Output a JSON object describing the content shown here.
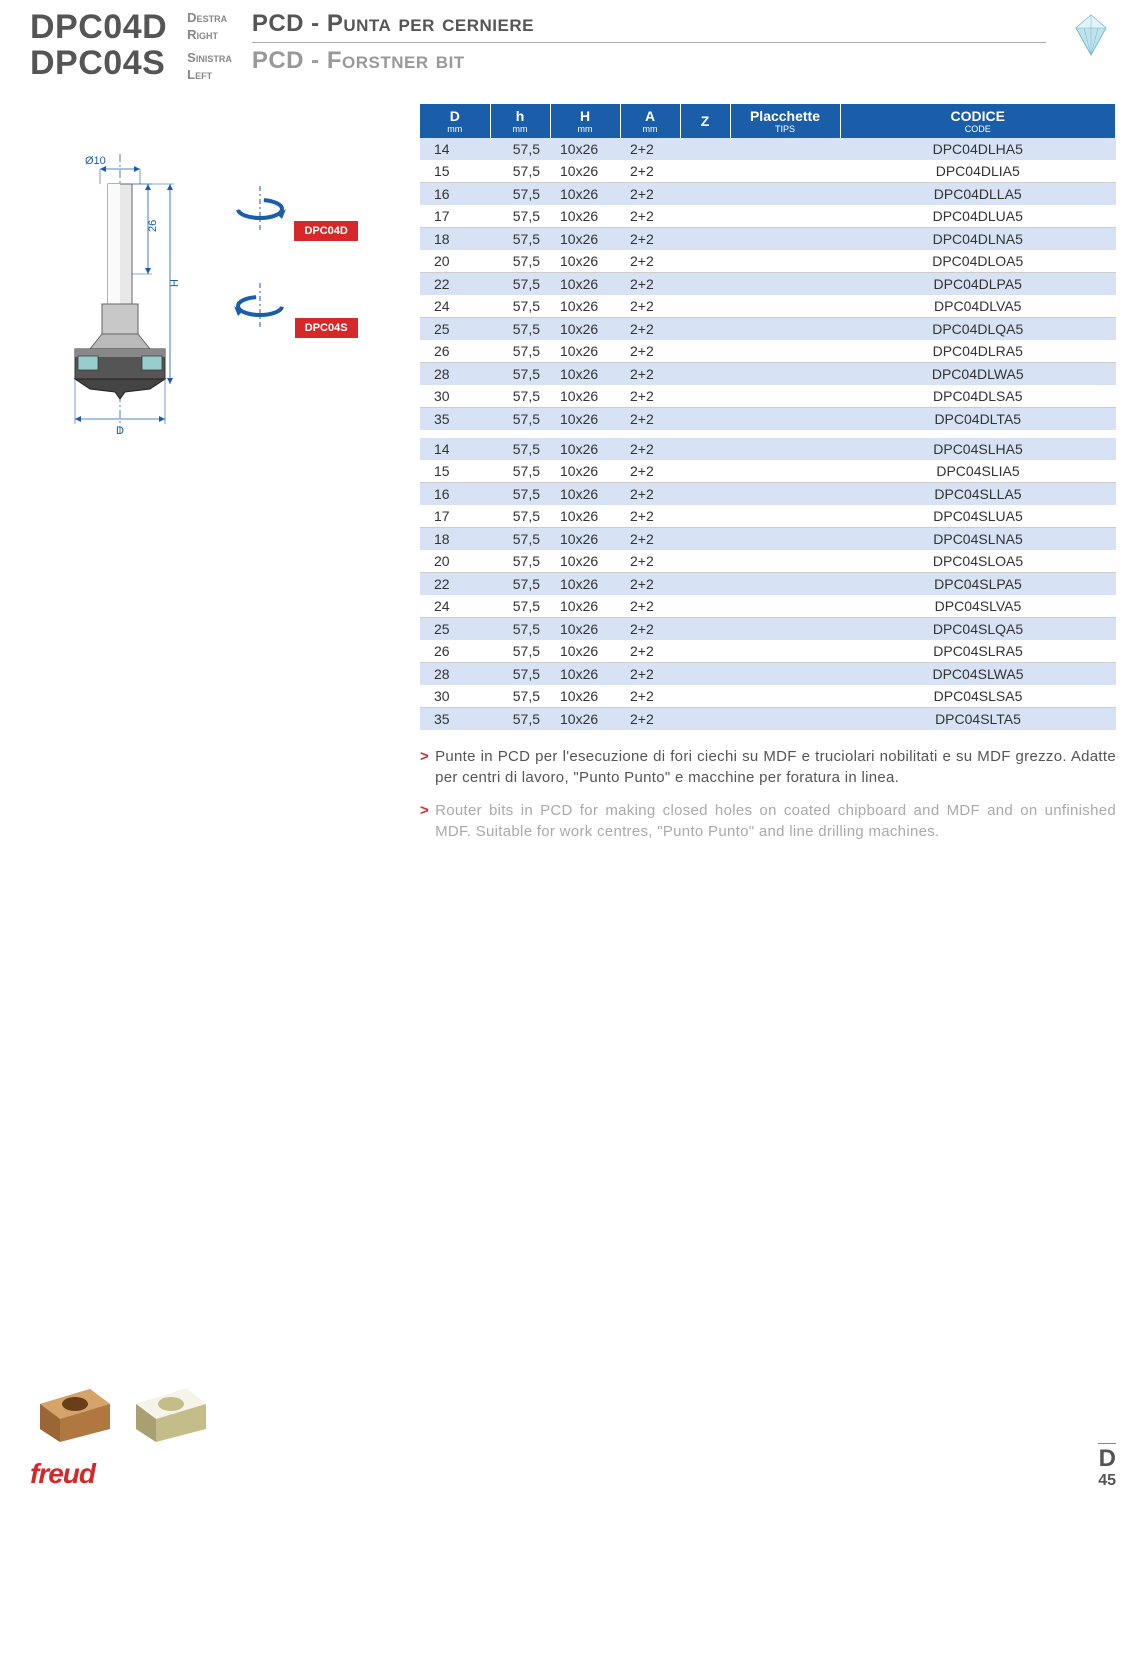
{
  "header": {
    "code1": "DPC04D",
    "code2": "DPC04S",
    "dir_it1": "Destra",
    "dir_en1": "Right",
    "dir_it2": "Sinistra",
    "dir_en2": "Left",
    "title_it": "PCD - Punta per cerniere",
    "title_en": "PCD - Forstner bit"
  },
  "diagram": {
    "shaft_dia": "Ø10",
    "shaft_len": "26",
    "height_lbl": "H",
    "dia_lbl": "D",
    "rot_label_d": "DPC04D",
    "rot_label_s": "DPC04S"
  },
  "table": {
    "headers": {
      "D": "D",
      "D_sub": "mm",
      "h": "h",
      "h_sub": "mm",
      "H": "H",
      "H_sub": "mm",
      "A": "A",
      "A_sub": "mm",
      "Z": "Z",
      "tips": "Placchette",
      "tips_sub": "TIPS",
      "code": "CODICE",
      "code_sub": "CODE"
    },
    "group1": [
      {
        "D": "14",
        "h": "57,5",
        "H": "10x26",
        "A": "2+2",
        "Z": "",
        "tips": "",
        "code": "DPC04DLHA5"
      },
      {
        "D": "15",
        "h": "57,5",
        "H": "10x26",
        "A": "2+2",
        "Z": "",
        "tips": "",
        "code": "DPC04DLIA5"
      },
      {
        "D": "16",
        "h": "57,5",
        "H": "10x26",
        "A": "2+2",
        "Z": "",
        "tips": "",
        "code": "DPC04DLLA5"
      },
      {
        "D": "17",
        "h": "57,5",
        "H": "10x26",
        "A": "2+2",
        "Z": "",
        "tips": "",
        "code": "DPC04DLUA5"
      },
      {
        "D": "18",
        "h": "57,5",
        "H": "10x26",
        "A": "2+2",
        "Z": "",
        "tips": "",
        "code": "DPC04DLNA5"
      },
      {
        "D": "20",
        "h": "57,5",
        "H": "10x26",
        "A": "2+2",
        "Z": "",
        "tips": "",
        "code": "DPC04DLOA5"
      },
      {
        "D": "22",
        "h": "57,5",
        "H": "10x26",
        "A": "2+2",
        "Z": "",
        "tips": "",
        "code": "DPC04DLPA5"
      },
      {
        "D": "24",
        "h": "57,5",
        "H": "10x26",
        "A": "2+2",
        "Z": "",
        "tips": "",
        "code": "DPC04DLVA5"
      },
      {
        "D": "25",
        "h": "57,5",
        "H": "10x26",
        "A": "2+2",
        "Z": "",
        "tips": "",
        "code": "DPC04DLQA5"
      },
      {
        "D": "26",
        "h": "57,5",
        "H": "10x26",
        "A": "2+2",
        "Z": "",
        "tips": "",
        "code": "DPC04DLRA5"
      },
      {
        "D": "28",
        "h": "57,5",
        "H": "10x26",
        "A": "2+2",
        "Z": "",
        "tips": "",
        "code": "DPC04DLWA5"
      },
      {
        "D": "30",
        "h": "57,5",
        "H": "10x26",
        "A": "2+2",
        "Z": "",
        "tips": "",
        "code": "DPC04DLSA5"
      },
      {
        "D": "35",
        "h": "57,5",
        "H": "10x26",
        "A": "2+2",
        "Z": "",
        "tips": "",
        "code": "DPC04DLTA5"
      }
    ],
    "group2": [
      {
        "D": "14",
        "h": "57,5",
        "H": "10x26",
        "A": "2+2",
        "Z": "",
        "tips": "",
        "code": "DPC04SLHA5"
      },
      {
        "D": "15",
        "h": "57,5",
        "H": "10x26",
        "A": "2+2",
        "Z": "",
        "tips": "",
        "code": "DPC04SLIA5"
      },
      {
        "D": "16",
        "h": "57,5",
        "H": "10x26",
        "A": "2+2",
        "Z": "",
        "tips": "",
        "code": "DPC04SLLA5"
      },
      {
        "D": "17",
        "h": "57,5",
        "H": "10x26",
        "A": "2+2",
        "Z": "",
        "tips": "",
        "code": "DPC04SLUA5"
      },
      {
        "D": "18",
        "h": "57,5",
        "H": "10x26",
        "A": "2+2",
        "Z": "",
        "tips": "",
        "code": "DPC04SLNA5"
      },
      {
        "D": "20",
        "h": "57,5",
        "H": "10x26",
        "A": "2+2",
        "Z": "",
        "tips": "",
        "code": "DPC04SLOA5"
      },
      {
        "D": "22",
        "h": "57,5",
        "H": "10x26",
        "A": "2+2",
        "Z": "",
        "tips": "",
        "code": "DPC04SLPA5"
      },
      {
        "D": "24",
        "h": "57,5",
        "H": "10x26",
        "A": "2+2",
        "Z": "",
        "tips": "",
        "code": "DPC04SLVA5"
      },
      {
        "D": "25",
        "h": "57,5",
        "H": "10x26",
        "A": "2+2",
        "Z": "",
        "tips": "",
        "code": "DPC04SLQA5"
      },
      {
        "D": "26",
        "h": "57,5",
        "H": "10x26",
        "A": "2+2",
        "Z": "",
        "tips": "",
        "code": "DPC04SLRA5"
      },
      {
        "D": "28",
        "h": "57,5",
        "H": "10x26",
        "A": "2+2",
        "Z": "",
        "tips": "",
        "code": "DPC04SLWA5"
      },
      {
        "D": "30",
        "h": "57,5",
        "H": "10x26",
        "A": "2+2",
        "Z": "",
        "tips": "",
        "code": "DPC04SLSA5"
      },
      {
        "D": "35",
        "h": "57,5",
        "H": "10x26",
        "A": "2+2",
        "Z": "",
        "tips": "",
        "code": "DPC04SLTA5"
      }
    ]
  },
  "descriptions": {
    "it": "Punte in PCD per l'esecuzione di fori ciechi su MDF e truciolari nobilitati e su MDF grezzo. Adatte per centri di lavoro, \"Punto Punto\" e macchine per foratura in linea.",
    "en": "Router bits in PCD for making closed holes on coated chipboard and MDF and on unfinished MDF. Suitable for work centres, \"Punto Punto\" and line drilling machines."
  },
  "footer": {
    "logo": "freud",
    "page_letter": "D",
    "page_num": "45"
  },
  "colors": {
    "brand_blue": "#1a5da8",
    "row_blue": "#d7e3f4",
    "brand_red": "#d62828",
    "text_gray": "#555555",
    "text_light": "#999999"
  }
}
